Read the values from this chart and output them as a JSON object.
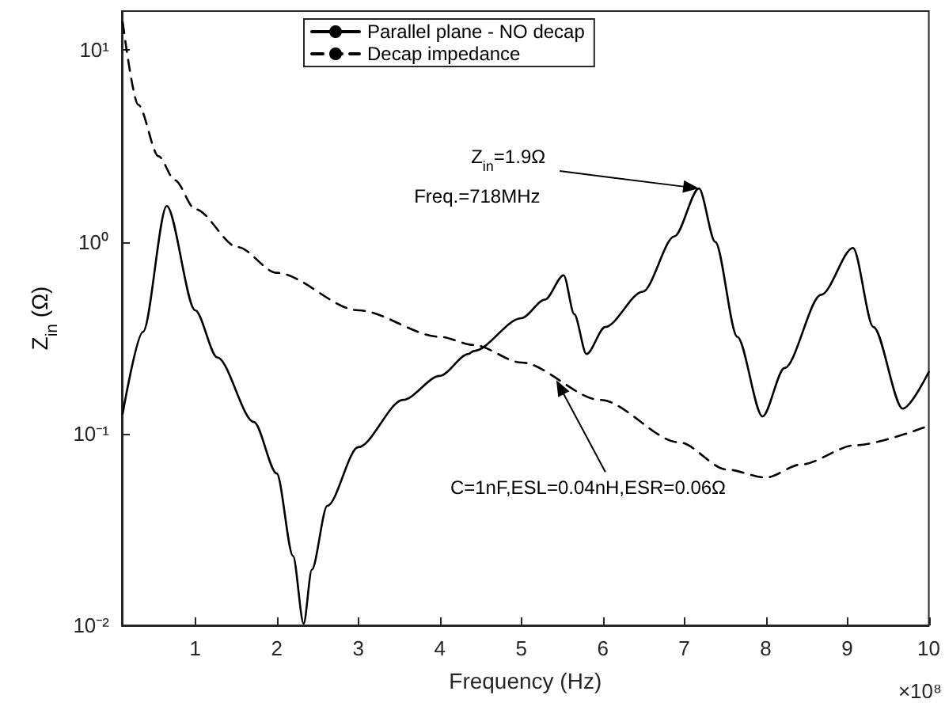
{
  "chart_data": {
    "type": "line",
    "xlabel": "Frequency (Hz)",
    "ylabel": "Z$_{in}$ (Ω)",
    "xlim": [
      0.1,
      10
    ],
    "xticks": [
      1,
      2,
      3,
      4,
      5,
      6,
      7,
      8,
      9,
      10
    ],
    "ylim": [
      0.01,
      16
    ],
    "yticks": [
      {
        "value": 0.01,
        "label": "10⁻²"
      },
      {
        "value": 0.1,
        "label": "10⁻¹"
      },
      {
        "value": 1,
        "label": "10⁰"
      },
      {
        "value": 10,
        "label": "10¹"
      }
    ],
    "log": "y",
    "grid": false,
    "legend": "top",
    "marker": "none",
    "series": [
      {
        "name": "Parallel plane - NO decap",
        "color": "#000000",
        "line_style": "solid",
        "x": [
          0.11,
          0.36,
          0.65,
          1.0,
          1.27,
          1.72,
          2.0,
          2.2,
          2.33,
          2.43,
          2.62,
          3.0,
          3.55,
          4.0,
          4.35,
          4.42,
          5.0,
          5.29,
          5.52,
          5.65,
          5.8,
          6.03,
          6.49,
          6.88,
          7.18,
          7.38,
          7.65,
          7.96,
          8.23,
          8.68,
          9.07,
          9.32,
          9.68,
          10
        ],
        "values": [
          0.127,
          0.34,
          1.54,
          0.44,
          0.25,
          0.115,
          0.062,
          0.023,
          0.0102,
          0.0195,
          0.042,
          0.085,
          0.15,
          0.2,
          0.26,
          0.27,
          0.4,
          0.5,
          0.67,
          0.42,
          0.26,
          0.36,
          0.55,
          1.07,
          1.9,
          1.0,
          0.32,
          0.123,
          0.22,
          0.53,
          0.93,
          0.36,
          0.135,
          0.21
        ]
      },
      {
        "name": "Decap impedance",
        "color": "#000000",
        "line_style": "dashed",
        "x": [
          0.11,
          0.3,
          0.55,
          0.75,
          1.0,
          1.52,
          2.0,
          3.0,
          4.0,
          4.42,
          5.0,
          5.97,
          6.94,
          7.52,
          8.0,
          8.43,
          9.1,
          10
        ],
        "values": [
          14,
          5.2,
          2.8,
          2.1,
          1.48,
          0.94,
          0.69,
          0.44,
          0.32,
          0.29,
          0.235,
          0.15,
          0.09,
          0.065,
          0.059,
          0.069,
          0.087,
          0.11
        ]
      }
    ],
    "annotations": [
      "×10⁸",
      {
        "text": "Z$_{in}$=1.9Ω",
        "x": 7.18,
        "y": 1.9
      },
      "Freq.=718MHz",
      {
        "text": "C=1nF,ESL=0.04nH,ESR=0.06Ω",
        "x": 5.43,
        "y": 0.19
      }
    ]
  }
}
